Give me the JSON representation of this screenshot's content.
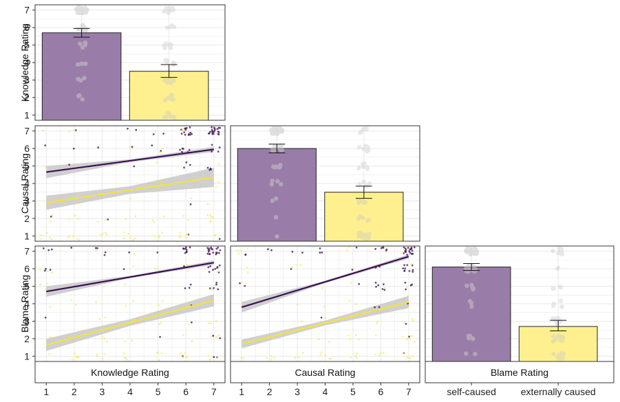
{
  "colors": {
    "self": "#9a7ca8",
    "external": "#fef08f",
    "self_line": "#3b0f54",
    "external_line": "#f5e33a",
    "ci_band": "#c8c8c8",
    "jitter": "#c8c8c8",
    "grid": "#e8e8e8",
    "frame": "#333333"
  },
  "chart_data": [
    {
      "type": "bar",
      "name": "knowledge-bars",
      "ylabel": "Knowledge Rating",
      "categories": [
        "self-caused",
        "externally caused"
      ],
      "values": [
        5.7,
        3.5
      ],
      "error": [
        [
          5.45,
          5.95
        ],
        [
          3.15,
          3.88
        ]
      ],
      "ylim": [
        0.7,
        7.3
      ],
      "yticks": [
        "1",
        "2",
        "3",
        "4",
        "5",
        "6",
        "7"
      ],
      "grid": true
    },
    {
      "type": "scatter",
      "name": "causal-vs-knowledge",
      "ylabel": "Causal Rating",
      "xlim": [
        0.6,
        7.4
      ],
      "ylim": [
        0.7,
        7.3
      ],
      "yticks": [
        "1",
        "2",
        "3",
        "4",
        "5",
        "6",
        "7"
      ],
      "series": [
        {
          "group": "self-caused",
          "fit": [
            [
              1,
              4.65
            ],
            [
              7,
              5.95
            ]
          ],
          "ci_halfwidth": [
            0.35,
            0.15
          ]
        },
        {
          "group": "externally caused",
          "fit": [
            [
              1,
              2.9
            ],
            [
              7,
              4.35
            ]
          ],
          "ci_halfwidth": [
            0.4,
            0.55
          ]
        }
      ],
      "grid": true
    },
    {
      "type": "bar",
      "name": "causal-bars",
      "categories": [
        "self-caused",
        "externally caused"
      ],
      "values": [
        6.0,
        3.5
      ],
      "error": [
        [
          5.75,
          6.25
        ],
        [
          3.15,
          3.85
        ]
      ],
      "ylim": [
        0.7,
        7.3
      ],
      "grid": true
    },
    {
      "type": "scatter",
      "name": "blame-vs-knowledge",
      "ylabel": "Blame Rating",
      "xlabel": "Knowledge Rating",
      "xlim": [
        0.6,
        7.4
      ],
      "ylim": [
        0.7,
        7.3
      ],
      "yticks": [
        "1",
        "2",
        "3",
        "4",
        "5",
        "6",
        "7"
      ],
      "xticks": [
        "1",
        "2",
        "3",
        "4",
        "5",
        "6",
        "7"
      ],
      "series": [
        {
          "group": "self-caused",
          "fit": [
            [
              1,
              4.7
            ],
            [
              7,
              6.35
            ]
          ],
          "ci_halfwidth": [
            0.3,
            0.12
          ]
        },
        {
          "group": "externally caused",
          "fit": [
            [
              1,
              1.65
            ],
            [
              7,
              4.2
            ]
          ],
          "ci_halfwidth": [
            0.35,
            0.35
          ]
        }
      ],
      "grid": true
    },
    {
      "type": "scatter",
      "name": "blame-vs-causal",
      "xlabel": "Causal Rating",
      "xlim": [
        0.6,
        7.4
      ],
      "ylim": [
        0.7,
        7.3
      ],
      "xticks": [
        "1",
        "2",
        "3",
        "4",
        "5",
        "6",
        "7"
      ],
      "series": [
        {
          "group": "self-caused",
          "fit": [
            [
              1,
              3.8
            ],
            [
              7,
              6.7
            ]
          ],
          "ci_halfwidth": [
            0.3,
            0.12
          ]
        },
        {
          "group": "externally caused",
          "fit": [
            [
              1,
              1.7
            ],
            [
              7,
              4.1
            ]
          ],
          "ci_halfwidth": [
            0.25,
            0.35
          ]
        }
      ],
      "grid": true
    },
    {
      "type": "bar",
      "name": "blame-bars",
      "xlabel": "Blame Rating",
      "categories": [
        "self-caused",
        "externally caused"
      ],
      "values": [
        6.1,
        2.7
      ],
      "error": [
        [
          5.9,
          6.3
        ],
        [
          2.45,
          3.05
        ]
      ],
      "ylim": [
        0.7,
        7.3
      ],
      "grid": true
    }
  ]
}
